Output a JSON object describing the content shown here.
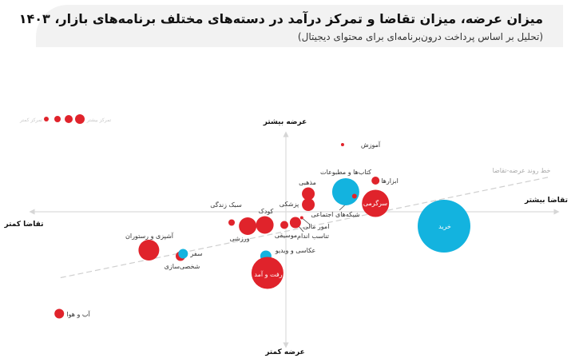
{
  "header": {
    "title": "میزان عرضه، میزان تقاضا و تمرکز درآمد در دسته‌های مختلف برنامه‌های بازار، ۱۴۰۳",
    "subtitle": "(تحلیل بر اساس پرداخت درون‌برنامه‌ای برای محتوای دیجیتال)"
  },
  "chart_data": {
    "type": "scatter",
    "subtype": "bubble-quadrant",
    "axes": {
      "x_positive_label": "تقاضا بیشتر",
      "x_negative_label": "تقاضا کمتر",
      "y_positive_label": "عرضه بیشتر",
      "y_negative_label": "عرضه کمتر",
      "xlim": [
        -97,
        104
      ],
      "ylim": [
        -117,
        77
      ],
      "grid": false
    },
    "legend": {
      "placement": "top-left",
      "more_label": "تمرکز بیشتر",
      "less_label": "تمرکز کمتر",
      "sizes": [
        3,
        4,
        5,
        6
      ]
    },
    "trend_line": {
      "label": "خط روند عرضه-تقاضا",
      "from": [
        -85.5,
        -55
      ],
      "to": [
        100,
        29
      ]
    },
    "colors": {
      "red": "#e0232b",
      "blue": "#13b3df"
    },
    "points": [
      {
        "label": "آموزش",
        "x": 21.5,
        "y": 56,
        "size": 2,
        "color": "red"
      },
      {
        "label": "کتاب‌ها و مطبوعات",
        "x": 22.7,
        "y": 16.7,
        "size": 17,
        "color": "blue"
      },
      {
        "label": "شبکه‌های اجتماعی",
        "x": 26,
        "y": 13,
        "size": 3,
        "color": "red"
      },
      {
        "label": "ابزارها",
        "x": 34,
        "y": 26,
        "size": 5,
        "color": "red"
      },
      {
        "label": "سرگرمی",
        "x": 34,
        "y": 7,
        "size": 17,
        "color": "red"
      },
      {
        "label": "خرید",
        "x": 60,
        "y": -12,
        "size": 33,
        "color": "blue"
      },
      {
        "label": "مذهبی",
        "x": 8.5,
        "y": 15,
        "size": 8,
        "color": "red"
      },
      {
        "label": "پزشکی",
        "x": 8.5,
        "y": 6,
        "size": 8,
        "color": "red"
      },
      {
        "label": "امور مالی",
        "x": 6,
        "y": -5,
        "size": 2,
        "color": "red"
      },
      {
        "label": "تناسب اندام",
        "x": 3.6,
        "y": -9,
        "size": 7,
        "color": "red"
      },
      {
        "label": "موسیقی",
        "x": -0.6,
        "y": -11,
        "size": 5,
        "color": "red"
      },
      {
        "label": "کودک",
        "x": -8,
        "y": -11,
        "size": 11,
        "color": "red"
      },
      {
        "label": "ورزشی",
        "x": -14.5,
        "y": -12,
        "size": 11,
        "color": "red"
      },
      {
        "label": "سبک زندگی",
        "x": -20.6,
        "y": -9,
        "size": 4,
        "color": "red"
      },
      {
        "label": "آشپزی و رستوران",
        "x": -52,
        "y": -32,
        "size": 13,
        "color": "red"
      },
      {
        "label": "شخصی‌سازی",
        "x": -40,
        "y": -37,
        "size": 6,
        "color": "red"
      },
      {
        "label": "سفر",
        "x": -39,
        "y": -35,
        "size": 6,
        "color": "blue"
      },
      {
        "label": "عکاسی و ویدیو",
        "x": -7.6,
        "y": -37,
        "size": 7,
        "color": "blue"
      },
      {
        "label": "رفت و آمد",
        "x": -7,
        "y": -51,
        "size": 20,
        "color": "red"
      },
      {
        "label": "آب و هوا",
        "x": -86,
        "y": -85,
        "size": 6,
        "color": "red"
      }
    ]
  }
}
